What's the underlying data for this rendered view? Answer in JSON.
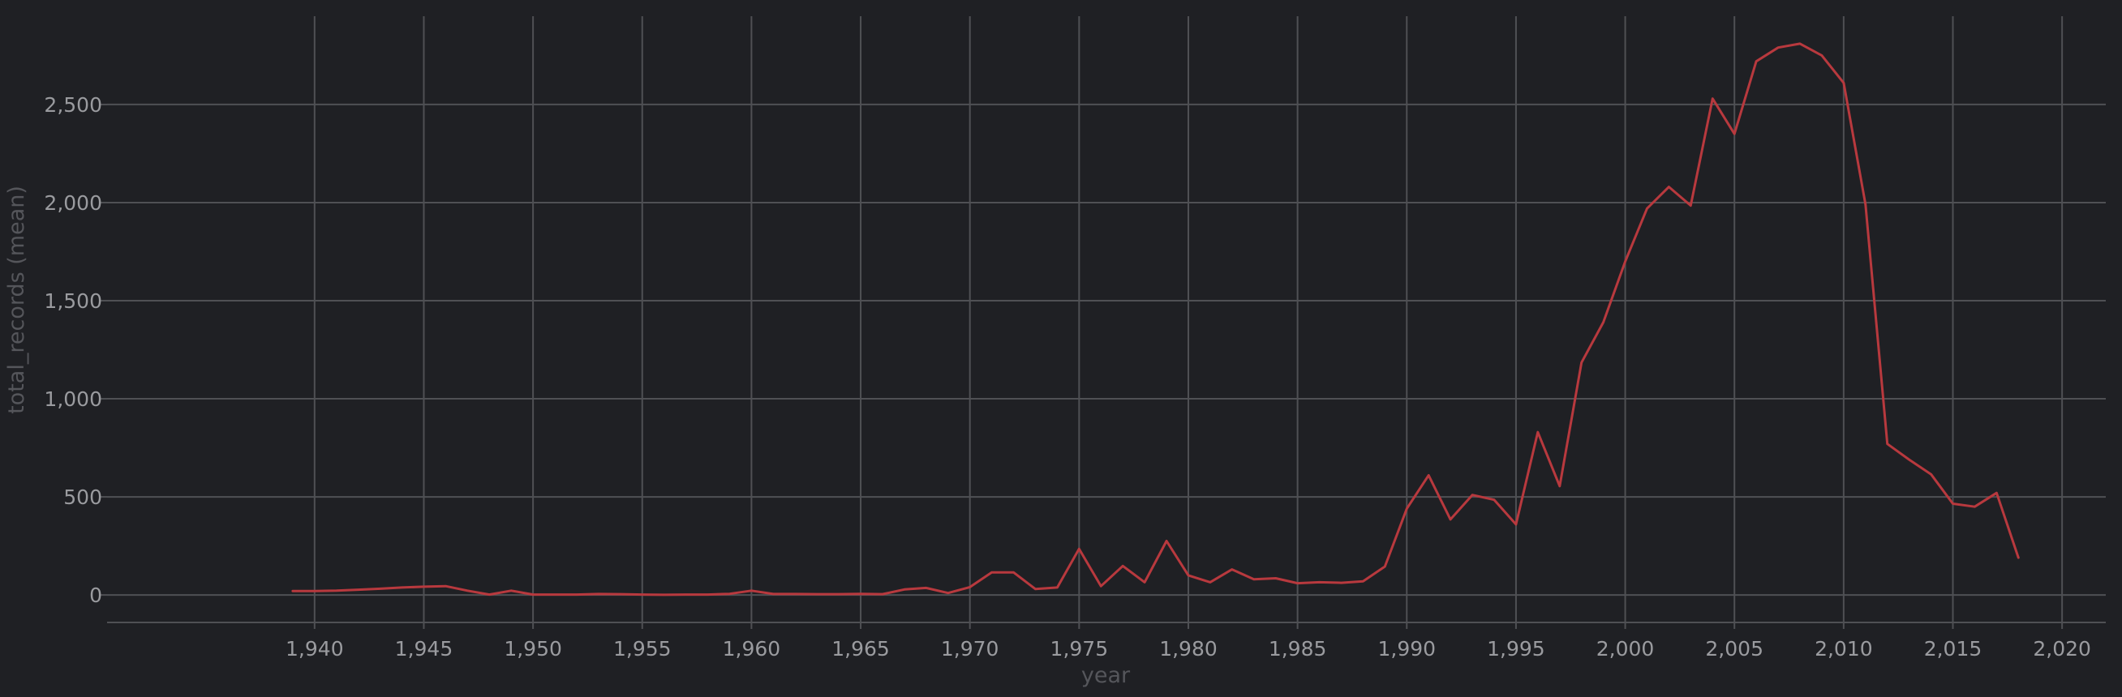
{
  "chart_data": {
    "type": "line",
    "title": "",
    "xlabel": "year",
    "ylabel": "total_records (mean)",
    "xlim": [
      1930.5,
      2022
    ],
    "ylim": [
      -140,
      2950
    ],
    "x_ticks": [
      1940,
      1945,
      1950,
      1955,
      1960,
      1965,
      1970,
      1975,
      1980,
      1985,
      1990,
      1995,
      2000,
      2005,
      2010,
      2015,
      2020
    ],
    "x_tick_labels": [
      "1,940",
      "1,945",
      "1,950",
      "1,955",
      "1,960",
      "1,965",
      "1,970",
      "1,975",
      "1,980",
      "1,985",
      "1,990",
      "1,995",
      "2,000",
      "2,005",
      "2,010",
      "2,015",
      "2,020"
    ],
    "y_ticks": [
      0,
      500,
      1000,
      1500,
      2000,
      2500
    ],
    "y_tick_labels": [
      "0",
      "500",
      "1,000",
      "1,500",
      "2,000",
      "2,500"
    ],
    "grid": true,
    "legend": "none",
    "background": "#1f2024",
    "series": [
      {
        "color": "#b8393e",
        "x": [
          1939,
          1940,
          1941,
          1942,
          1943,
          1944,
          1945,
          1946,
          1947,
          1948,
          1949,
          1950,
          1951,
          1952,
          1953,
          1954,
          1955,
          1956,
          1957,
          1958,
          1959,
          1960,
          1961,
          1962,
          1963,
          1964,
          1965,
          1966,
          1967,
          1968,
          1969,
          1970,
          1971,
          1972,
          1973,
          1974,
          1975,
          1976,
          1977,
          1978,
          1979,
          1980,
          1981,
          1982,
          1983,
          1984,
          1985,
          1986,
          1987,
          1988,
          1989,
          1990,
          1991,
          1992,
          1993,
          1994,
          1995,
          1996,
          1997,
          1998,
          1999,
          2000,
          2001,
          2002,
          2003,
          2004,
          2005,
          2006,
          2007,
          2008,
          2009,
          2010,
          2011,
          2012,
          2013,
          2014,
          2015,
          2016,
          2017,
          2018
        ],
        "values": [
          20,
          20,
          22,
          27,
          32,
          38,
          42,
          45,
          22,
          2,
          22,
          2,
          2,
          2,
          5,
          4,
          2,
          1,
          2,
          2,
          6,
          22,
          5,
          5,
          4,
          4,
          6,
          4,
          28,
          36,
          10,
          40,
          115,
          115,
          30,
          38,
          235,
          45,
          148,
          65,
          275,
          100,
          65,
          130,
          80,
          85,
          60,
          65,
          62,
          70,
          145,
          440,
          610,
          385,
          510,
          485,
          360,
          830,
          555,
          1185,
          1390,
          1700,
          1970,
          2080,
          1985,
          2530,
          2350,
          2720,
          2790,
          2810,
          2750,
          2610,
          1990,
          770,
          690,
          615,
          465,
          450,
          520,
          190
        ]
      }
    ]
  }
}
